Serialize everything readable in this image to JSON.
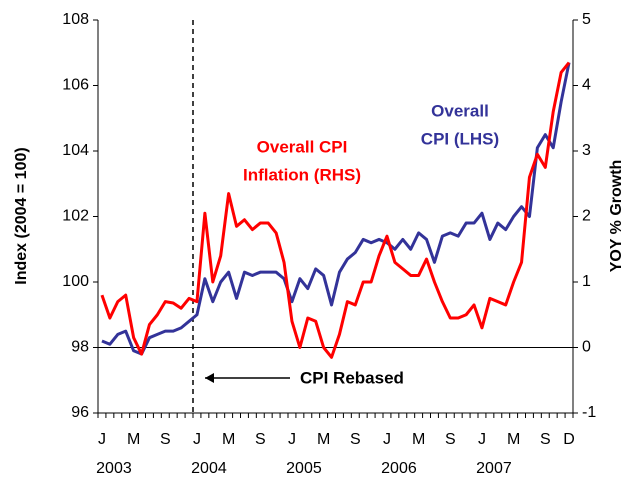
{
  "chart_data": {
    "type": "line",
    "categories": [
      "J",
      null,
      null,
      null,
      "M",
      null,
      null,
      null,
      "S",
      null,
      null,
      null,
      "J",
      null,
      null,
      null,
      "M",
      null,
      null,
      null,
      "S",
      null,
      null,
      null,
      "J",
      null,
      null,
      null,
      "M",
      null,
      null,
      null,
      "S",
      null,
      null,
      null,
      "J",
      null,
      null,
      null,
      "M",
      null,
      null,
      null,
      "S",
      null,
      null,
      null,
      "J",
      null,
      null,
      null,
      "M",
      null,
      null,
      null,
      "S",
      null,
      null,
      "D"
    ],
    "years": [
      "2003",
      null,
      null,
      null,
      null,
      null,
      null,
      null,
      null,
      null,
      null,
      null,
      "2004",
      null,
      null,
      null,
      null,
      null,
      null,
      null,
      null,
      null,
      null,
      null,
      "2005",
      null,
      null,
      null,
      null,
      null,
      null,
      null,
      null,
      null,
      null,
      null,
      "2006",
      null,
      null,
      null,
      null,
      null,
      null,
      null,
      null,
      null,
      null,
      null,
      "2007",
      null,
      null,
      null,
      null,
      null,
      null,
      null,
      null,
      null,
      null,
      null
    ],
    "series": [
      {
        "name": "Overall CPI (LHS)",
        "color": "#333399",
        "axis": "y",
        "values": [
          98.2,
          98.1,
          98.4,
          98.5,
          97.9,
          97.8,
          98.3,
          98.4,
          98.5,
          98.5,
          98.6,
          98.8,
          99.0,
          100.1,
          99.4,
          100.0,
          100.3,
          99.5,
          100.3,
          100.2,
          100.3,
          100.3,
          100.3,
          100.1,
          99.4,
          100.1,
          99.8,
          100.4,
          100.2,
          99.3,
          100.3,
          100.7,
          100.9,
          101.3,
          101.2,
          101.3,
          101.2,
          101.0,
          101.3,
          101.0,
          101.5,
          101.3,
          100.6,
          101.4,
          101.5,
          101.4,
          101.8,
          101.8,
          102.1,
          101.3,
          101.8,
          101.6,
          102.0,
          102.3,
          102.0,
          104.1,
          104.5,
          104.1,
          105.5,
          106.7
        ]
      },
      {
        "name": "Overall CPI Inflation (RHS)",
        "color": "#ff0000",
        "axis": "y2",
        "values": [
          0.8,
          0.45,
          0.7,
          0.8,
          0.15,
          -0.1,
          0.35,
          0.5,
          0.7,
          0.68,
          0.6,
          0.75,
          0.7,
          2.05,
          1.0,
          1.4,
          2.35,
          1.85,
          1.95,
          1.8,
          1.9,
          1.9,
          1.75,
          1.3,
          0.4,
          0.0,
          0.45,
          0.4,
          0.0,
          -0.15,
          0.2,
          0.7,
          0.65,
          1.0,
          1.0,
          1.4,
          1.7,
          1.3,
          1.2,
          1.1,
          1.1,
          1.35,
          1.0,
          0.7,
          0.45,
          0.45,
          0.5,
          0.65,
          0.3,
          0.75,
          0.7,
          0.65,
          1.0,
          1.3,
          2.6,
          2.95,
          2.75,
          3.6,
          4.2,
          4.35
        ]
      }
    ],
    "annotations": {
      "blue": [
        "Overall",
        "CPI (LHS)"
      ],
      "red": [
        "Overall CPI",
        "Inflation (RHS)"
      ],
      "rebase": "CPI Rebased"
    },
    "ylabel": "Index (2004 = 100)",
    "y2label": "YOY % Growth",
    "ylim": [
      96,
      108
    ],
    "yticks": [
      96,
      98,
      100,
      102,
      104,
      106,
      108
    ],
    "y2lim": [
      -1,
      5
    ],
    "y2ticks": [
      -1,
      0,
      1,
      2,
      3,
      4,
      5
    ],
    "reference_line": 98,
    "grid": false
  }
}
